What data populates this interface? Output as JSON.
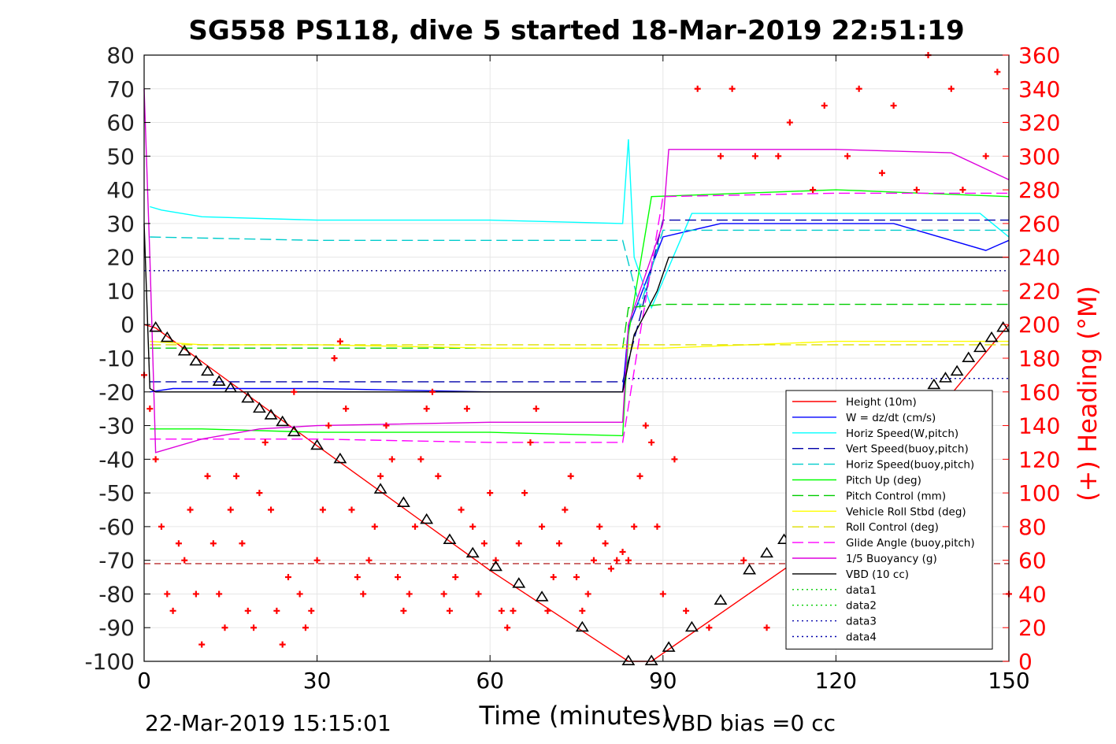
{
  "chart_data": {
    "type": "line",
    "title": "SG558 PS118, dive 5 started 18-Mar-2019 22:51:19",
    "xlabel": "Time (minutes)",
    "ylabel": "",
    "y2label": "(+) Heading (°M)",
    "xlim": [
      0,
      150
    ],
    "ylim": [
      -100,
      80
    ],
    "y2lim": [
      0,
      360
    ],
    "xticks": [
      "0",
      "30",
      "60",
      "90",
      "120",
      "150"
    ],
    "yticks": [
      "80",
      "70",
      "60",
      "50",
      "40",
      "30",
      "20",
      "10",
      "0",
      "-10",
      "-20",
      "-30",
      "-40",
      "-50",
      "-60",
      "-70",
      "-80",
      "-90",
      "-100"
    ],
    "y2ticks": [
      "360",
      "340",
      "320",
      "300",
      "280",
      "260",
      "240",
      "220",
      "200",
      "180",
      "160",
      "140",
      "120",
      "100",
      "80",
      "60",
      "40",
      "20",
      "0"
    ],
    "grid": true,
    "legend_position": "bottom-right",
    "footer_left": "22-Mar-2019 15:15:01",
    "footer_right": "VBD bias =0 cc",
    "colors": {
      "height": "#ff0000",
      "w": "#0000ff",
      "hspeed": "#00ffff",
      "pitch": "#00ff00",
      "roll": "#ffff00",
      "glide": "#ff00ff",
      "buoy": "#dd00dd",
      "vbd": "#000000",
      "heading": "#ff0000",
      "grid": "#e6e6e6"
    },
    "series": [
      {
        "name": "Height (10m)",
        "key": "height",
        "style": "solid",
        "x": [
          0,
          2,
          30,
          60,
          84,
          88,
          120,
          150
        ],
        "y": [
          0,
          -1,
          -36,
          -73,
          -100,
          -100,
          -62,
          0
        ]
      },
      {
        "name": "W = dz/dt (cm/s)",
        "key": "w",
        "style": "solid",
        "x": [
          1,
          5,
          30,
          60,
          83,
          84,
          86,
          90,
          100,
          130,
          146,
          150
        ],
        "y": [
          -20,
          -19,
          -19,
          -20,
          -20,
          -1,
          8,
          26,
          30,
          30,
          22,
          25
        ]
      },
      {
        "name": "Horiz Speed(W,pitch)",
        "key": "hspeed",
        "style": "solid",
        "x": [
          1,
          3,
          10,
          30,
          60,
          83,
          84,
          85,
          88,
          95,
          120,
          145,
          150
        ],
        "y": [
          35,
          34,
          32,
          31,
          31,
          30,
          55,
          20,
          5,
          33,
          33,
          33,
          26
        ]
      },
      {
        "name": "Vert Speed(buoy,pitch)",
        "key": "vspeed_buoy",
        "style": "dashed",
        "x": [
          1,
          30,
          60,
          83,
          86,
          90,
          120,
          150
        ],
        "y": [
          -17,
          -17,
          -17,
          -17,
          2,
          31,
          31,
          31
        ]
      },
      {
        "name": "Horiz Speed(buoy,pitch)",
        "key": "hspeed_buoy",
        "style": "dashed",
        "x": [
          1,
          30,
          60,
          83,
          86,
          90,
          120,
          150
        ],
        "y": [
          26,
          25,
          25,
          25,
          5,
          28,
          28,
          28
        ]
      },
      {
        "name": "Pitch Up (deg)",
        "key": "pitch",
        "style": "solid",
        "x": [
          1,
          10,
          30,
          60,
          83,
          84,
          88,
          120,
          150
        ],
        "y": [
          -31,
          -31,
          -32,
          -32,
          -33,
          -3,
          38,
          40,
          38
        ]
      },
      {
        "name": "Pitch Control (mm)",
        "key": "pitch_ctrl",
        "style": "dashed",
        "x": [
          1,
          30,
          60,
          83,
          84,
          90,
          120,
          150
        ],
        "y": [
          -7,
          -7,
          -7,
          -7,
          5,
          6,
          6,
          6
        ]
      },
      {
        "name": "Vehicle Roll Stbd (deg)",
        "key": "roll",
        "style": "solid",
        "x": [
          1,
          10,
          30,
          60,
          83,
          90,
          120,
          150
        ],
        "y": [
          -5,
          -6,
          -6,
          -7,
          -7,
          -7,
          -5,
          -5
        ]
      },
      {
        "name": "Roll Control (deg)",
        "key": "roll_ctrl",
        "style": "dashed",
        "x": [
          1,
          150
        ],
        "y": [
          -6,
          -6
        ]
      },
      {
        "name": "Glide Angle (buoy,pitch)",
        "key": "glide",
        "style": "dashed",
        "x": [
          1,
          30,
          60,
          83,
          86,
          90,
          120,
          150
        ],
        "y": [
          -34,
          -34,
          -35,
          -35,
          -3,
          38,
          39,
          39
        ]
      },
      {
        "name": "1/5 Buoyancy (g)",
        "key": "buoy",
        "style": "solid",
        "x": [
          0,
          1,
          2,
          10,
          20,
          30,
          60,
          83,
          84,
          90,
          91,
          120,
          140,
          150
        ],
        "y": [
          70,
          20,
          -38,
          -34,
          -31,
          -30,
          -29,
          -29,
          0,
          30,
          52,
          52,
          51,
          43
        ]
      },
      {
        "name": "VBD (10 cc)",
        "key": "vbd",
        "style": "solid",
        "x": [
          0,
          1,
          2,
          30,
          60,
          83,
          85,
          89,
          91,
          150
        ],
        "y": [
          30,
          -19,
          -20,
          -20,
          -20,
          -20,
          -3,
          10,
          20,
          20
        ]
      },
      {
        "name": "data1",
        "key": "data1",
        "style": "dotted",
        "x": [],
        "y": []
      },
      {
        "name": "data2",
        "key": "data2",
        "style": "dotted",
        "x": [],
        "y": []
      },
      {
        "name": "data3",
        "key": "data3",
        "style": "dotted",
        "x": [
          0,
          150
        ],
        "y": [
          16,
          16
        ]
      },
      {
        "name": "data4",
        "key": "data4",
        "style": "dotted",
        "x": [
          84,
          150
        ],
        "y": [
          -16,
          -16
        ]
      }
    ],
    "reference_lines": [
      {
        "key": "dark-red-dashed",
        "y": -71,
        "color": "#aa0000",
        "x": [
          0,
          150
        ]
      }
    ],
    "heading": {
      "axis": "right",
      "marker": "+",
      "x": [
        0,
        1,
        2,
        3,
        4,
        5,
        6,
        7,
        8,
        9,
        10,
        11,
        12,
        13,
        14,
        15,
        16,
        17,
        18,
        19,
        20,
        21,
        22,
        23,
        24,
        25,
        26,
        27,
        28,
        29,
        30,
        31,
        32,
        33,
        34,
        35,
        36,
        37,
        38,
        39,
        40,
        41,
        42,
        43,
        44,
        45,
        46,
        47,
        48,
        49,
        50,
        51,
        52,
        53,
        54,
        55,
        56,
        57,
        58,
        59,
        60,
        61,
        62,
        63,
        64,
        65,
        66,
        67,
        68,
        69,
        70,
        71,
        72,
        73,
        74,
        75,
        76,
        77,
        78,
        79,
        80,
        81,
        82,
        83,
        84,
        85,
        86,
        87,
        88,
        89,
        90,
        92,
        94,
        96,
        98,
        100,
        102,
        104,
        106,
        108,
        110,
        112,
        114,
        116,
        118,
        120,
        122,
        124,
        126,
        128,
        130,
        132,
        134,
        136,
        138,
        140,
        142,
        144,
        146,
        148,
        150
      ],
      "y": [
        170,
        150,
        120,
        80,
        40,
        30,
        70,
        60,
        90,
        40,
        10,
        110,
        70,
        40,
        20,
        90,
        110,
        70,
        30,
        20,
        100,
        130,
        90,
        30,
        10,
        50,
        160,
        40,
        20,
        30,
        60,
        90,
        140,
        180,
        190,
        150,
        90,
        50,
        40,
        60,
        80,
        110,
        140,
        120,
        50,
        30,
        40,
        80,
        120,
        150,
        160,
        110,
        40,
        30,
        50,
        90,
        150,
        80,
        40,
        70,
        100,
        60,
        30,
        20,
        30,
        70,
        100,
        130,
        150,
        80,
        30,
        50,
        70,
        90,
        110,
        50,
        30,
        40,
        60,
        80,
        70,
        55,
        60,
        65,
        60,
        80,
        110,
        140,
        130,
        80,
        40,
        120,
        30,
        340,
        20,
        300,
        340,
        60,
        300,
        20,
        300,
        320,
        20,
        280,
        330,
        40,
        300,
        340,
        20,
        290,
        330,
        30,
        280,
        360,
        20,
        340,
        280,
        30,
        300,
        350,
        40
      ]
    },
    "markers": {
      "type": "triangle",
      "points": [
        [
          2,
          -1
        ],
        [
          4,
          -4
        ],
        [
          7,
          -8
        ],
        [
          9,
          -11
        ],
        [
          11,
          -14
        ],
        [
          13,
          -17
        ],
        [
          15,
          -19
        ],
        [
          18,
          -22
        ],
        [
          20,
          -25
        ],
        [
          22,
          -27
        ],
        [
          24,
          -29
        ],
        [
          26,
          -32
        ],
        [
          30,
          -36
        ],
        [
          34,
          -40
        ],
        [
          41,
          -49
        ],
        [
          45,
          -53
        ],
        [
          49,
          -58
        ],
        [
          53,
          -64
        ],
        [
          57,
          -68
        ],
        [
          61,
          -72
        ],
        [
          65,
          -77
        ],
        [
          69,
          -81
        ],
        [
          76,
          -90
        ],
        [
          84,
          -100
        ],
        [
          88,
          -100
        ],
        [
          91,
          -96
        ],
        [
          95,
          -90
        ],
        [
          100,
          -82
        ],
        [
          105,
          -73
        ],
        [
          108,
          -68
        ],
        [
          111,
          -64
        ],
        [
          115,
          -58
        ],
        [
          118,
          -52
        ],
        [
          121,
          -45
        ],
        [
          125,
          -38
        ],
        [
          129,
          -31
        ],
        [
          133,
          -24
        ],
        [
          137,
          -18
        ],
        [
          139,
          -16
        ],
        [
          141,
          -14
        ],
        [
          143,
          -10
        ],
        [
          145,
          -7
        ],
        [
          147,
          -4
        ],
        [
          149,
          -1
        ]
      ]
    }
  }
}
